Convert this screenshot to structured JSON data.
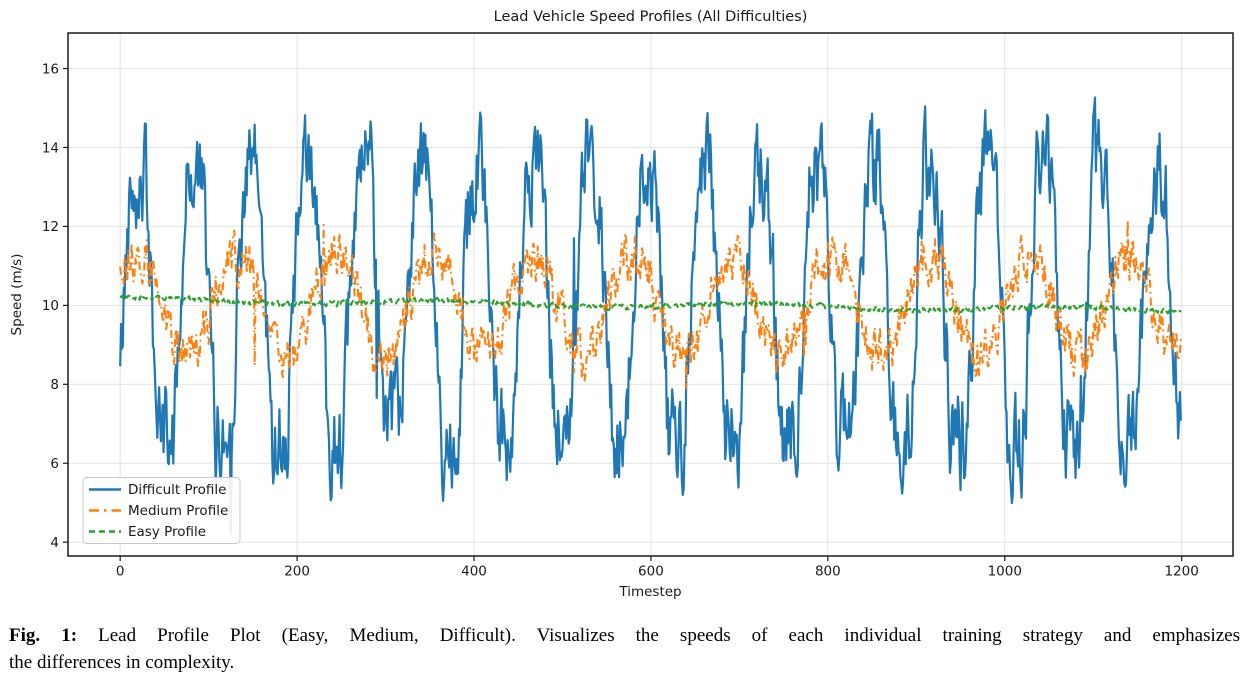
{
  "figure": {
    "title": "Lead Vehicle Speed Profiles (All Difficulties)",
    "xlabel": "Timestep",
    "ylabel": "Speed (m/s)"
  },
  "caption": {
    "label": "Fig. 1:",
    "line1": "Lead Profile Plot (Easy, Medium, Difficult). Visualizes the speeds of each individual training strategy and emphasizes",
    "line2": "the differences in complexity."
  },
  "chart_data": {
    "type": "line",
    "title": "Lead Vehicle Speed Profiles (All Difficulties)",
    "xlabel": "Timestep",
    "ylabel": "Speed (m/s)",
    "xlim": [
      -59,
      1258
    ],
    "ylim": [
      3.65,
      16.9
    ],
    "xticks": [
      0,
      200,
      400,
      600,
      800,
      1000,
      1200
    ],
    "yticks": [
      4,
      6,
      8,
      10,
      12,
      14,
      16
    ],
    "grid": true,
    "background": "#ffffff",
    "grid_color": "#e3e3e3",
    "spine_color": "#1a1a1a",
    "text_color": "#1a1a1a",
    "legend": {
      "position": "lower left",
      "border_color": "#c9c9c9",
      "entries": [
        "Difficult Profile",
        "Medium Profile",
        "Easy Profile"
      ]
    },
    "n_points": 1200,
    "seed": 42,
    "series": [
      {
        "name": "Difficult Profile",
        "color": "#1f77b4",
        "style": "solid",
        "width": 2.2,
        "observed": {
          "mean": 10.0,
          "typical_peak": 14.4,
          "typical_trough": 5.6,
          "max": 16.2,
          "min": 4.2,
          "cycle_period_timesteps": 64
        },
        "model": {
          "mean": 10.0,
          "amplitude": 3.3,
          "period": 64,
          "phase": -0.39,
          "wave_gain": 1.4,
          "noise": 1.05,
          "smooth": 0.55,
          "trend": 0,
          "spike_prob": 0.006,
          "spike_mag": 2.4,
          "clip_min": 4.2,
          "clip_max": 16.28
        }
      },
      {
        "name": "Medium Profile",
        "color": "#ff7f0e",
        "style": "dashdot",
        "width": 2.0,
        "observed": {
          "mean": 10.0,
          "typical_peak": 11.7,
          "typical_trough": 8.4,
          "max": 12.8,
          "min": 8.0,
          "cycle_period_timesteps": 112
        },
        "model": {
          "mean": 10.0,
          "amplitude": 1.2,
          "period": 112,
          "phase": 0.45,
          "wave_gain": 1.15,
          "noise": 0.5,
          "smooth": 0.45,
          "trend": 0,
          "spike_prob": 0.004,
          "spike_mag": 1.2,
          "clip_min": 7.9,
          "clip_max": 12.85
        }
      },
      {
        "name": "Easy Profile",
        "color": "#2ca02c",
        "style": "dashed",
        "width": 2.0,
        "observed": {
          "mean": 10.05,
          "start_value": 10.15,
          "end_value": 9.9,
          "max": 10.45,
          "min": 9.7
        },
        "model": {
          "mean": 10.14,
          "amplitude": 0.06,
          "period": 350,
          "phase": 1.2,
          "wave_gain": 1,
          "noise": 0.06,
          "smooth": 0.4,
          "trend": -0.00022,
          "spike_prob": 0,
          "spike_mag": 0,
          "clip_min": 9.55,
          "clip_max": 10.55
        }
      }
    ]
  }
}
